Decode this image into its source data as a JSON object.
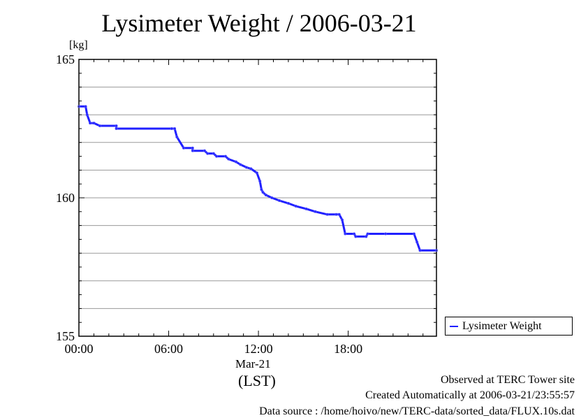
{
  "chart_data": {
    "type": "line",
    "title": "Lysimeter Weight / 2006-03-21",
    "ylabel": "[kg]",
    "ylim": [
      155,
      165
    ],
    "yticks": [
      155,
      160,
      165
    ],
    "xlim": [
      0,
      23.9
    ],
    "xticks": [
      {
        "value": 0,
        "label": "00:00"
      },
      {
        "value": 6,
        "label": "06:00"
      },
      {
        "value": 12,
        "label": "12:00"
      },
      {
        "value": 18,
        "label": "18:00"
      }
    ],
    "xlabel_date": "Mar-21",
    "xlabel": "(LST)",
    "grid": true,
    "legend_position": "right",
    "series": [
      {
        "name": "Lysimeter Weight",
        "color": "#2020ff",
        "x": [
          0.0,
          0.45,
          0.55,
          0.75,
          1.0,
          1.4,
          2.5,
          2.5,
          6.2,
          6.4,
          6.55,
          7.0,
          7.6,
          7.6,
          8.4,
          8.6,
          9.0,
          9.2,
          9.8,
          10.0,
          10.5,
          10.8,
          11.2,
          11.5,
          11.9,
          12.1,
          12.2,
          12.3,
          12.5,
          12.9,
          13.4,
          14.0,
          14.5,
          15.2,
          15.8,
          16.6,
          17.2,
          17.4,
          17.6,
          17.8,
          18.4,
          18.5,
          19.2,
          19.3,
          20.5,
          22.4,
          22.6,
          22.8,
          23.9
        ],
        "y": [
          163.3,
          163.3,
          163.0,
          162.7,
          162.7,
          162.6,
          162.6,
          162.5,
          162.5,
          162.5,
          162.2,
          161.8,
          161.8,
          161.7,
          161.7,
          161.6,
          161.6,
          161.5,
          161.5,
          161.4,
          161.3,
          161.2,
          161.1,
          161.05,
          160.9,
          160.6,
          160.3,
          160.2,
          160.1,
          160.0,
          159.9,
          159.8,
          159.7,
          159.6,
          159.5,
          159.4,
          159.4,
          159.4,
          159.2,
          158.7,
          158.7,
          158.6,
          158.6,
          158.7,
          158.7,
          158.7,
          158.4,
          158.1,
          158.1
        ]
      }
    ]
  },
  "footer": {
    "line1": "Observed at TERC Tower site",
    "line2": "Created Automatically at 2006-03-21/23:55:57",
    "line3": "Data source : /home/hoivo/new/TERC-data/sorted_data/FLUX.10s.dat"
  }
}
